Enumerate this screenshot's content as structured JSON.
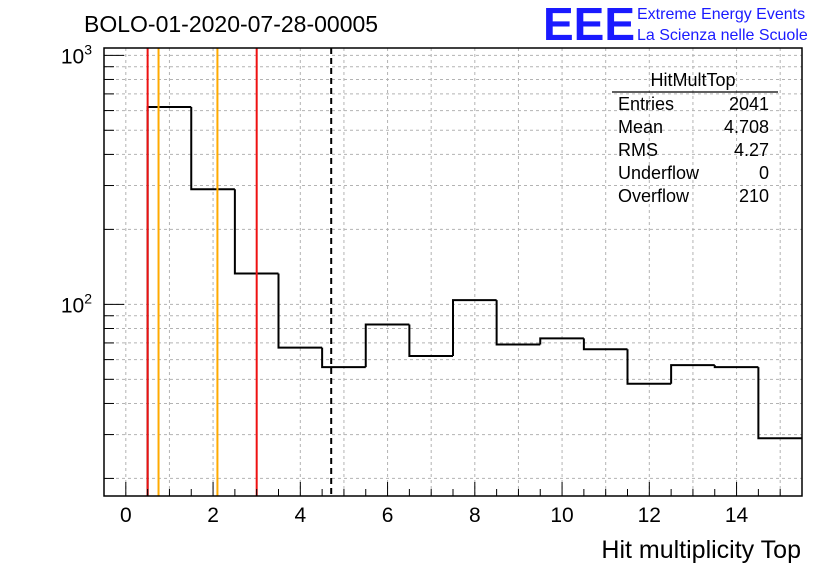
{
  "title": "BOLO-01-2020-07-28-00005",
  "logo": {
    "mark": "EEE",
    "line1": "Extreme Energy Events",
    "line2": "La Scienza nelle Scuole",
    "color": "#1a1aff"
  },
  "stats": {
    "name": "HitMultTop",
    "rows": [
      {
        "label": "Entries",
        "value": "2041"
      },
      {
        "label": "Mean",
        "value": "4.708"
      },
      {
        "label": "RMS",
        "value": "4.27"
      },
      {
        "label": "Underflow",
        "value": "0"
      },
      {
        "label": "Overflow",
        "value": "210"
      }
    ]
  },
  "chart_data": {
    "type": "bar",
    "style": "step-histogram",
    "xlabel": "Hit multiplicity Top",
    "ylabel": "",
    "xlim": [
      -0.5,
      15.5
    ],
    "ylim": [
      17,
      1070
    ],
    "yscale": "log",
    "grid": true,
    "x_ticks": [
      0,
      2,
      4,
      6,
      8,
      10,
      12,
      14
    ],
    "y_ticks": [
      {
        "value": 100,
        "base": "10",
        "exp": "2"
      },
      {
        "value": 1000,
        "base": "10",
        "exp": "3"
      }
    ],
    "bin_edges": [
      0.5,
      1.5,
      2.5,
      3.5,
      4.5,
      5.5,
      6.5,
      7.5,
      8.5,
      9.5,
      10.5,
      11.5,
      12.5,
      13.5,
      14.5,
      15.5
    ],
    "values": [
      620,
      290,
      133,
      67,
      56,
      83,
      62,
      104,
      69,
      73,
      66,
      48,
      57,
      56,
      29
    ],
    "vertical_lines": [
      {
        "x": 0.5,
        "color": "#ee1111",
        "style": "solid"
      },
      {
        "x": 0.75,
        "color": "#ffaa00",
        "style": "solid"
      },
      {
        "x": 2.1,
        "color": "#ffaa00",
        "style": "solid"
      },
      {
        "x": 3.0,
        "color": "#ee1111",
        "style": "solid"
      },
      {
        "x": 4.708,
        "color": "#000000",
        "style": "dashed"
      }
    ]
  }
}
